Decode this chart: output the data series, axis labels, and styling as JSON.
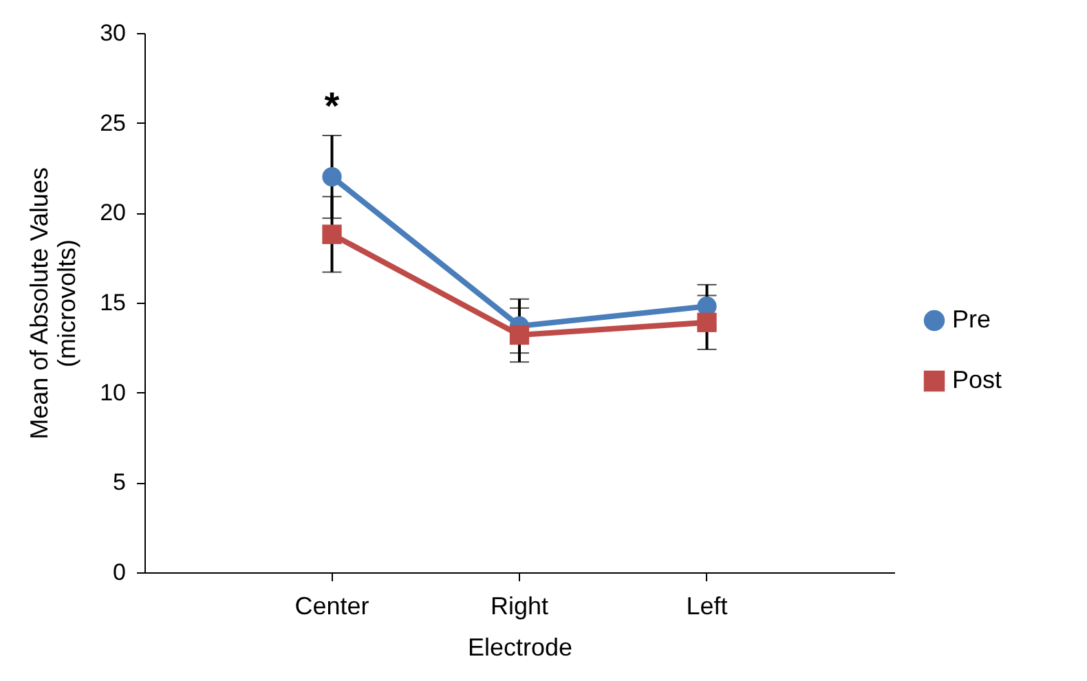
{
  "chart_data": {
    "type": "line",
    "xlabel": "Electrode",
    "ylabel": [
      "Mean of Absolute Values",
      "(microvolts)"
    ],
    "categories": [
      "Center",
      "Right",
      "Left"
    ],
    "series": [
      {
        "name": "Pre",
        "color": "#4a7ebb",
        "marker": "circle",
        "values": [
          22.0,
          13.7,
          14.8
        ],
        "errors": [
          2.3,
          1.5,
          1.2
        ]
      },
      {
        "name": "Post",
        "color": "#be4b48",
        "marker": "square",
        "values": [
          18.8,
          13.2,
          13.9
        ],
        "errors": [
          2.1,
          1.5,
          1.5
        ]
      }
    ],
    "ylim": [
      0,
      30
    ],
    "yticks": [
      0,
      5,
      10,
      15,
      20,
      25,
      30
    ],
    "grid": false,
    "legend": "right",
    "annotations": [
      "*"
    ]
  }
}
